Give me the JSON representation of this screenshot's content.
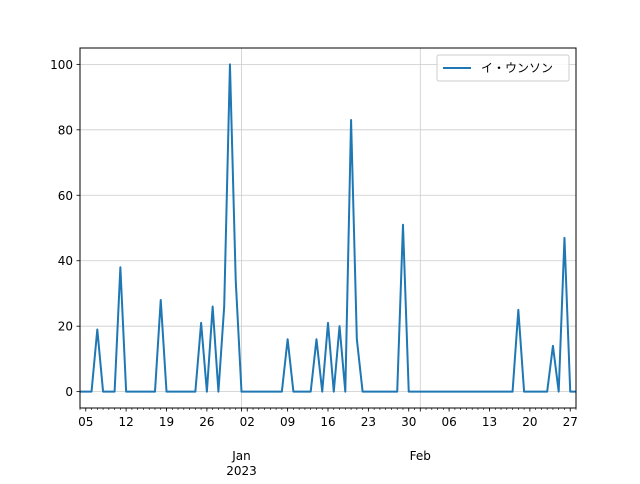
{
  "chart_data": {
    "type": "line",
    "title": "",
    "xlabel": "",
    "ylabel": "",
    "xlim": [
      "2022-12-04",
      "2023-02-28"
    ],
    "ylim": [
      -5,
      105
    ],
    "grid": true,
    "legend_placement": "upper right",
    "yticks": [
      0,
      20,
      40,
      60,
      80,
      100
    ],
    "xticks_major": [
      {
        "date": "2022-12-05",
        "label": "05"
      },
      {
        "date": "2022-12-12",
        "label": "12"
      },
      {
        "date": "2022-12-19",
        "label": "19"
      },
      {
        "date": "2022-12-26",
        "label": "26"
      },
      {
        "date": "2023-01-02",
        "label": "02"
      },
      {
        "date": "2023-01-09",
        "label": "09"
      },
      {
        "date": "2023-01-16",
        "label": "16"
      },
      {
        "date": "2023-01-23",
        "label": "23"
      },
      {
        "date": "2023-01-30",
        "label": "30"
      },
      {
        "date": "2023-02-06",
        "label": "06"
      },
      {
        "date": "2023-02-13",
        "label": "13"
      },
      {
        "date": "2023-02-20",
        "label": "20"
      },
      {
        "date": "2023-02-27",
        "label": "27"
      }
    ],
    "xticks_month": [
      {
        "date": "2023-01-01",
        "label": "Jan",
        "sublabel": "2023"
      },
      {
        "date": "2023-02-01",
        "label": "Feb",
        "sublabel": ""
      }
    ],
    "series": [
      {
        "name": "イ・ウンソン",
        "color": "#1f77b4",
        "x": [
          "2022-12-04",
          "2022-12-05",
          "2022-12-06",
          "2022-12-07",
          "2022-12-08",
          "2022-12-09",
          "2022-12-10",
          "2022-12-11",
          "2022-12-12",
          "2022-12-13",
          "2022-12-14",
          "2022-12-15",
          "2022-12-16",
          "2022-12-17",
          "2022-12-18",
          "2022-12-19",
          "2022-12-20",
          "2022-12-21",
          "2022-12-22",
          "2022-12-23",
          "2022-12-24",
          "2022-12-25",
          "2022-12-26",
          "2022-12-27",
          "2022-12-28",
          "2022-12-29",
          "2022-12-30",
          "2022-12-31",
          "2023-01-01",
          "2023-01-02",
          "2023-01-03",
          "2023-01-04",
          "2023-01-05",
          "2023-01-06",
          "2023-01-07",
          "2023-01-08",
          "2023-01-09",
          "2023-01-10",
          "2023-01-11",
          "2023-01-12",
          "2023-01-13",
          "2023-01-14",
          "2023-01-15",
          "2023-01-16",
          "2023-01-17",
          "2023-01-18",
          "2023-01-19",
          "2023-01-20",
          "2023-01-21",
          "2023-01-22",
          "2023-01-23",
          "2023-01-24",
          "2023-01-25",
          "2023-01-26",
          "2023-01-27",
          "2023-01-28",
          "2023-01-29",
          "2023-01-30",
          "2023-01-31",
          "2023-02-01",
          "2023-02-02",
          "2023-02-03",
          "2023-02-04",
          "2023-02-05",
          "2023-02-06",
          "2023-02-07",
          "2023-02-08",
          "2023-02-09",
          "2023-02-10",
          "2023-02-11",
          "2023-02-12",
          "2023-02-13",
          "2023-02-14",
          "2023-02-15",
          "2023-02-16",
          "2023-02-17",
          "2023-02-18",
          "2023-02-19",
          "2023-02-20",
          "2023-02-21",
          "2023-02-22",
          "2023-02-23",
          "2023-02-24",
          "2023-02-25",
          "2023-02-26",
          "2023-02-27",
          "2023-02-28"
        ],
        "values": [
          0,
          0,
          0,
          19,
          0,
          0,
          0,
          38,
          0,
          0,
          0,
          0,
          0,
          0,
          28,
          0,
          0,
          0,
          0,
          0,
          0,
          21,
          0,
          26,
          0,
          26,
          100,
          34,
          0,
          0,
          0,
          0,
          0,
          0,
          0,
          0,
          16,
          0,
          0,
          0,
          0,
          16,
          0,
          21,
          0,
          20,
          0,
          83,
          16,
          0,
          0,
          0,
          0,
          0,
          0,
          0,
          51,
          0,
          0,
          0,
          0,
          0,
          0,
          0,
          0,
          0,
          0,
          0,
          0,
          0,
          0,
          0,
          0,
          0,
          0,
          0,
          25,
          0,
          0,
          0,
          0,
          0,
          14,
          0,
          47,
          0,
          0
        ]
      }
    ]
  }
}
